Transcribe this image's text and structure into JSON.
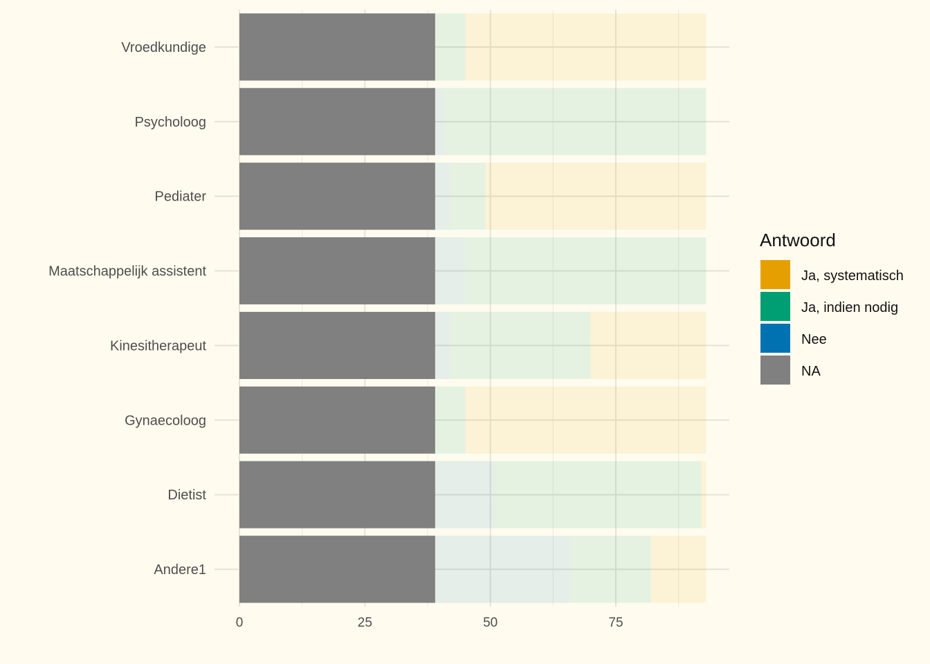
{
  "chart_data": {
    "type": "bar",
    "orientation": "horizontal",
    "stacked": true,
    "categories": [
      "Vroedkundige",
      "Psycholoog",
      "Pediater",
      "Maatschappelijk assistent",
      "Kinesitherapeut",
      "Gynaecoloog",
      "Dietist",
      "Andere1"
    ],
    "series": [
      {
        "name": "NA",
        "color": "#808080",
        "opacity": 1,
        "values": [
          39,
          39,
          39,
          39,
          39,
          39,
          39,
          39
        ]
      },
      {
        "name": "Nee",
        "color": "#0072b2",
        "opacity": 0.1,
        "values": [
          0,
          2,
          3,
          6,
          3,
          0,
          12,
          27
        ]
      },
      {
        "name": "Ja, indien nodig",
        "color": "#009e73",
        "opacity": 0.1,
        "values": [
          6,
          52,
          7,
          48,
          28,
          6,
          41,
          16
        ]
      },
      {
        "name": "Ja, systematisch",
        "color": "#e69f00",
        "opacity": 0.1,
        "values": [
          48,
          0,
          44,
          0,
          23,
          48,
          1,
          11
        ]
      }
    ],
    "xlim": [
      0,
      97.9
    ],
    "x_ticks": [
      0,
      25,
      50,
      75
    ],
    "x_minor_ticks": [
      12.5,
      37.5,
      62.5,
      87.5
    ],
    "grid": true,
    "legend": {
      "title": "Antwoord",
      "position": "right",
      "entries": [
        {
          "label": "Ja, systematisch",
          "color": "#e69f00"
        },
        {
          "label": "Ja, indien nodig",
          "color": "#009e73"
        },
        {
          "label": "Nee",
          "color": "#0072b2"
        },
        {
          "label": "NA",
          "color": "#808080"
        }
      ]
    }
  }
}
